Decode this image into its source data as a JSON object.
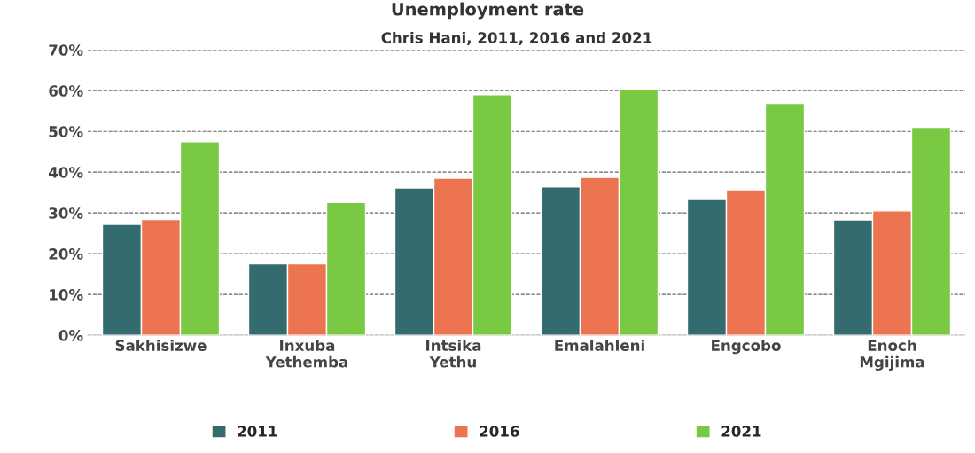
{
  "chart_data": {
    "type": "bar",
    "title": "Unemployment rate",
    "subtitle": "Chris Hani, 2011, 2016 and 2021",
    "categories": [
      "Sakhisizwe",
      "Inxuba\nYethemba",
      "Intsika\nYethu",
      "Emalahleni",
      "Engcobo",
      "Enoch\nMgijima"
    ],
    "series": [
      {
        "name": "2011",
        "color": "#346b6f",
        "values": [
          27.2,
          17.5,
          36.1,
          36.4,
          33.3,
          28.3
        ]
      },
      {
        "name": "2016",
        "color": "#ec7451",
        "values": [
          28.4,
          17.5,
          38.5,
          38.7,
          35.7,
          30.5
        ]
      },
      {
        "name": "2021",
        "color": "#7ac943",
        "values": [
          47.5,
          32.6,
          59.0,
          60.4,
          56.9,
          51.0
        ]
      }
    ],
    "ylim": [
      0,
      70
    ],
    "yticks": [
      {
        "value": 0,
        "label": "0%"
      },
      {
        "value": 10,
        "label": "10%"
      },
      {
        "value": 20,
        "label": "20%"
      },
      {
        "value": 30,
        "label": "30%"
      },
      {
        "value": 40,
        "label": "40%"
      },
      {
        "value": 50,
        "label": "50%"
      },
      {
        "value": 60,
        "label": "60%"
      },
      {
        "value": 70,
        "label": "70%"
      }
    ],
    "grid": "y",
    "legend": "bottom"
  }
}
